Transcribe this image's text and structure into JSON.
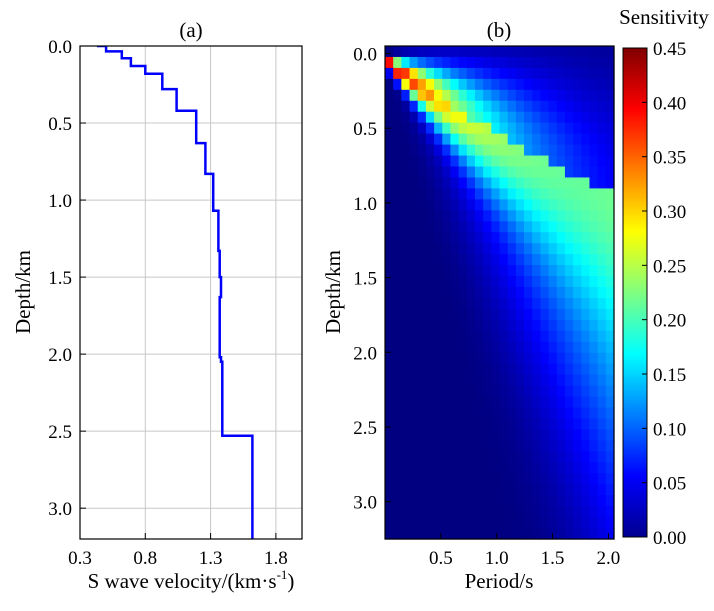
{
  "figure": {
    "panel_a_label": "(a)",
    "panel_b_label": "(b)",
    "colorbar_title": "Sensitivity"
  },
  "chart_data": [
    {
      "type": "line",
      "xlabel": "S wave velocity/(km·s",
      "xlabel_sup": "-1",
      "xlabel_end": ")",
      "ylabel": "Depth/km",
      "xlim": [
        0.3,
        2.0
      ],
      "ylim": [
        3.2,
        0.0
      ],
      "xticks": [
        "0.3",
        "0.8",
        "1.3",
        "1.8"
      ],
      "yticks": [
        "0.0",
        "0.5",
        "1.0",
        "1.5",
        "2.0",
        "2.5",
        "3.0"
      ],
      "grid": true,
      "line_color": "#0000ff",
      "series": [
        {
          "x": [
            0.43,
            0.5,
            0.5,
            0.62,
            0.62,
            0.69,
            0.69,
            0.8,
            0.8,
            0.93,
            0.93,
            1.04,
            1.04,
            1.19,
            1.19,
            1.26,
            1.26,
            1.32,
            1.32,
            1.36,
            1.36,
            1.37,
            1.37,
            1.38,
            1.38,
            1.37,
            1.37,
            1.38,
            1.38,
            1.39,
            1.39,
            1.62,
            1.62
          ],
          "y": [
            0.0,
            0.0,
            0.035,
            0.035,
            0.08,
            0.08,
            0.13,
            0.13,
            0.18,
            0.18,
            0.28,
            0.28,
            0.42,
            0.42,
            0.63,
            0.63,
            0.83,
            0.83,
            1.07,
            1.07,
            1.33,
            1.33,
            1.5,
            1.5,
            1.63,
            1.63,
            2.02,
            2.02,
            2.05,
            2.05,
            2.53,
            2.53,
            3.2
          ]
        }
      ]
    },
    {
      "type": "heatmap",
      "xlabel": "Period/s",
      "ylabel": "Depth/km",
      "xlim": [
        0.0,
        2.05
      ],
      "ylim": [
        3.25,
        -0.05
      ],
      "xticks": [
        "0.5",
        "1.0",
        "1.5",
        "2.0"
      ],
      "yticks": [
        "0.0",
        "0.5",
        "1.0",
        "1.5",
        "2.0",
        "2.5",
        "3.0"
      ],
      "ncols": 28,
      "nrows": 45,
      "color_range": [
        0.0,
        0.45
      ],
      "colorbar_ticks": [
        "0.00",
        "0.05",
        "0.10",
        "0.15",
        "0.20",
        "0.25",
        "0.30",
        "0.35",
        "0.40",
        "0.45"
      ],
      "colormap": "jet"
    }
  ]
}
